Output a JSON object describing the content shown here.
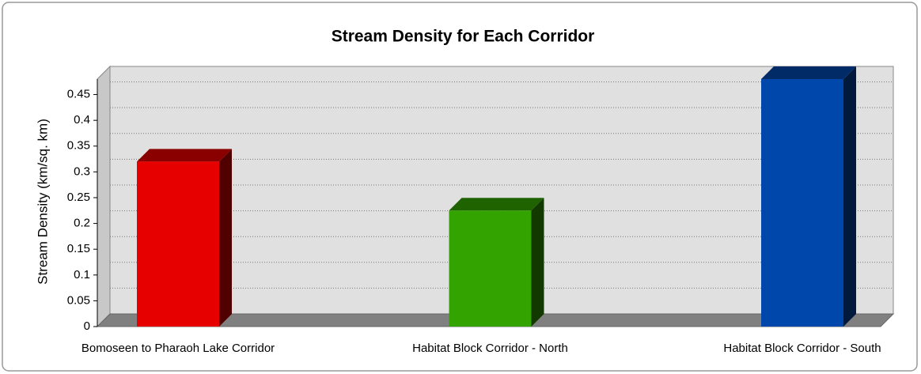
{
  "chart_data": {
    "type": "bar3d",
    "title": "Stream Density for Each Corridor",
    "y_axis_label": "Stream Density (km/sq. km)",
    "categories": [
      "Bomoseen to Pharaoh Lake Corridor",
      "Habitat Block Corridor - North",
      "Habitat Block Corridor - South"
    ],
    "values": [
      0.32,
      0.225,
      0.48
    ],
    "colors": [
      "#e60000",
      "#33a300",
      "#0047ab"
    ],
    "ylim": [
      0,
      0.48
    ],
    "yticks": [
      0,
      0.05,
      0.1,
      0.15,
      0.2,
      0.25,
      0.3,
      0.35,
      0.4,
      0.45
    ],
    "grid": true
  }
}
